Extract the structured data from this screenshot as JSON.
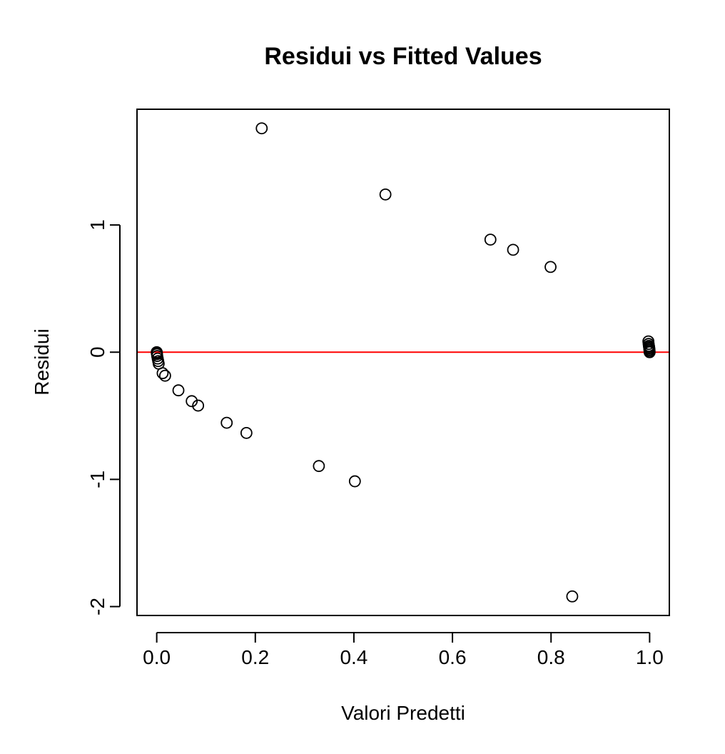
{
  "chart_data": {
    "type": "scatter",
    "title": "Residui vs Fitted Values",
    "xlabel": "Valori Predetti",
    "ylabel": "Residui",
    "xlim": [
      -0.04,
      1.04
    ],
    "ylim": [
      -2.07,
      1.91
    ],
    "x_ticks": [
      {
        "value": 0.0,
        "label": "0.0"
      },
      {
        "value": 0.2,
        "label": "0.2"
      },
      {
        "value": 0.4,
        "label": "0.4"
      },
      {
        "value": 0.6,
        "label": "0.6"
      },
      {
        "value": 0.8,
        "label": "0.8"
      },
      {
        "value": 1.0,
        "label": "1.0"
      }
    ],
    "y_ticks": [
      {
        "value": -2,
        "label": "-2"
      },
      {
        "value": -1,
        "label": "-1"
      },
      {
        "value": 0,
        "label": "0"
      },
      {
        "value": 1,
        "label": "1"
      }
    ],
    "grid": false,
    "reference_line": {
      "y": 0,
      "color": "#ff0000"
    },
    "point_color": "#000000",
    "points": [
      {
        "x": 0.213,
        "y": 1.76
      },
      {
        "x": 0.464,
        "y": 1.24
      },
      {
        "x": 0.677,
        "y": 0.885
      },
      {
        "x": 0.723,
        "y": 0.805
      },
      {
        "x": 0.799,
        "y": 0.67
      },
      {
        "x": 0.843,
        "y": -1.92
      },
      {
        "x": 0.402,
        "y": -1.015
      },
      {
        "x": 0.329,
        "y": -0.895
      },
      {
        "x": 0.182,
        "y": -0.635
      },
      {
        "x": 0.142,
        "y": -0.555
      },
      {
        "x": 0.084,
        "y": -0.42
      },
      {
        "x": 0.071,
        "y": -0.385
      },
      {
        "x": 0.044,
        "y": -0.3
      },
      {
        "x": 0.017,
        "y": -0.185
      },
      {
        "x": 0.012,
        "y": -0.165
      },
      {
        "x": 0.004,
        "y": -0.09
      },
      {
        "x": 0.003,
        "y": -0.07
      },
      {
        "x": 0.002,
        "y": -0.05
      },
      {
        "x": 0.001,
        "y": -0.03
      },
      {
        "x": 0.0005,
        "y": -0.015
      },
      {
        "x": 0.0002,
        "y": -0.005
      },
      {
        "x": 0.0,
        "y": 0.0
      },
      {
        "x": 0.9975,
        "y": 0.085
      },
      {
        "x": 0.998,
        "y": 0.065
      },
      {
        "x": 0.9985,
        "y": 0.05
      },
      {
        "x": 0.999,
        "y": 0.04
      },
      {
        "x": 0.9993,
        "y": 0.03
      },
      {
        "x": 0.9996,
        "y": 0.02
      },
      {
        "x": 0.9998,
        "y": 0.01
      },
      {
        "x": 1.0,
        "y": 0.0
      }
    ]
  }
}
